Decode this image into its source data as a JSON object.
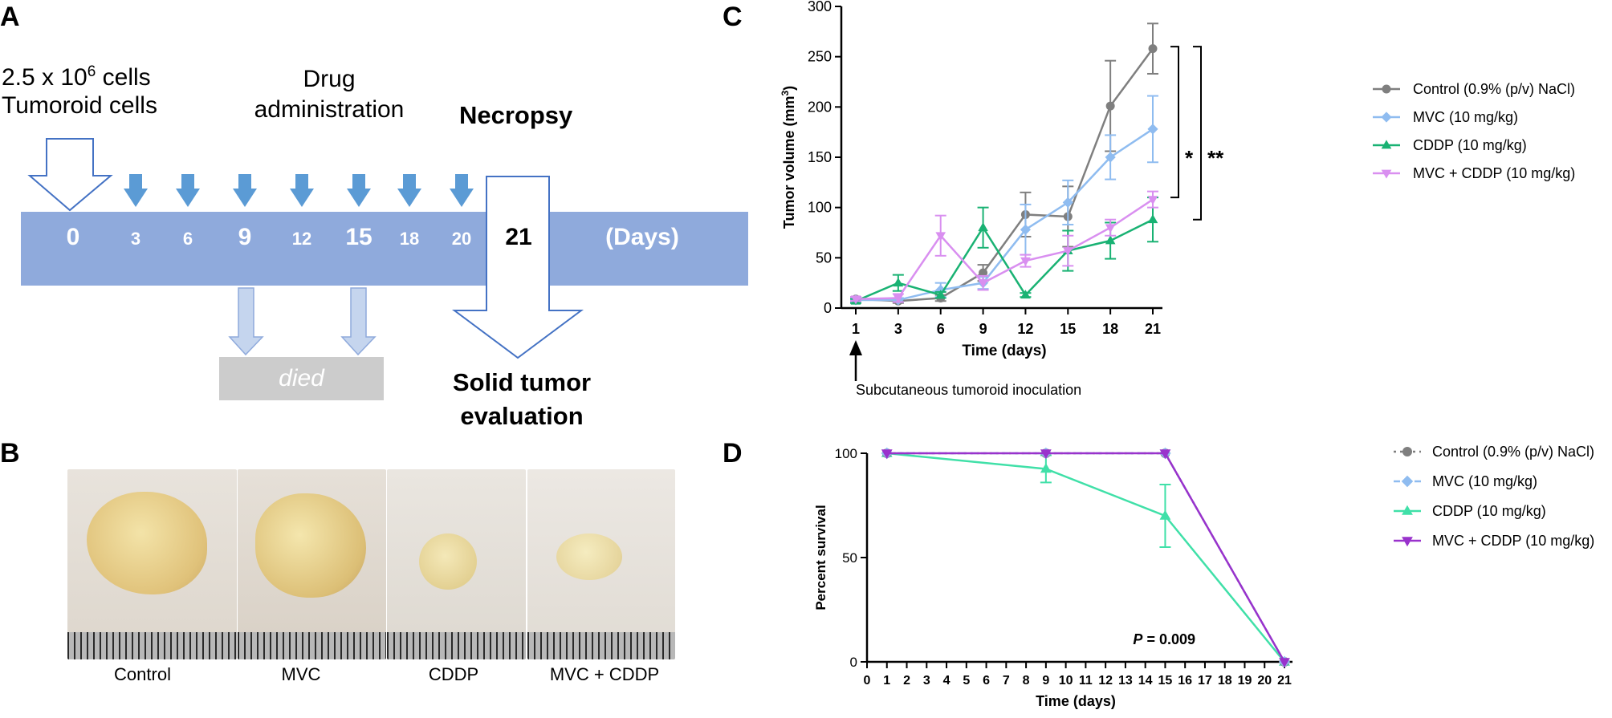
{
  "colors": {
    "timeline": "#8faadc",
    "arrow_blue": "#5b9bd5",
    "arrow_light": "#c5d5ee",
    "died_box": "#cccccc",
    "control": "#7f7f7f",
    "mvc": "#8fbcf0",
    "cddp": "#19b273",
    "mvc_cddp": "#d98ff0",
    "cddp_survival": "#40e0a8",
    "mvc_cddp_survival": "#9932cc"
  },
  "panel_a": {
    "letter": "A",
    "cells_line1_prefix": "2.5 x 10",
    "cells_exp": "6",
    "cells_line1_suffix": " cells",
    "cells_line2": "Tumoroid cells",
    "drug_line1": "Drug",
    "drug_line2": "administration",
    "necropsy": "Necropsy",
    "days_label": "(Days)",
    "day_start": "0",
    "drug_days": [
      "3",
      "6",
      "9",
      "12",
      "15",
      "18",
      "20"
    ],
    "day_end": "21",
    "died": "died",
    "solid_line1": "Solid tumor",
    "solid_line2": "evaluation"
  },
  "panel_b": {
    "letter": "B",
    "photos": [
      {
        "label": "Control",
        "icon": "tumor-photo-control"
      },
      {
        "label": "MVC",
        "icon": "tumor-photo-mvc"
      },
      {
        "label": "CDDP",
        "icon": "tumor-photo-cddp"
      },
      {
        "label": "MVC + CDDP",
        "icon": "tumor-photo-mvc-cddp"
      }
    ]
  },
  "chart_data": [
    {
      "id": "C",
      "type": "line",
      "panel_letter": "C",
      "xlabel": "Time (days)",
      "ylabel_prefix": "Tumor volume (mm",
      "ylabel_exp": "3",
      "ylabel_suffix": ")",
      "ylim": [
        0,
        300
      ],
      "yticks": [
        0,
        50,
        100,
        150,
        200,
        250,
        300
      ],
      "categories": [
        "1",
        "3",
        "6",
        "9",
        "12",
        "15",
        "18",
        "21"
      ],
      "series": [
        {
          "name": "Control (0.9% (p/v) NaCl)",
          "marker": "circle",
          "color": "#7f7f7f",
          "values": [
            9,
            7,
            10,
            35,
            93,
            91,
            201,
            258
          ],
          "errors": [
            2,
            2,
            3,
            8,
            22,
            30,
            45,
            25
          ]
        },
        {
          "name": "MVC (10 mg/kg)",
          "marker": "diamond",
          "color": "#8fbcf0",
          "values": [
            8,
            8,
            18,
            25,
            78,
            105,
            150,
            178
          ],
          "errors": [
            2,
            2,
            7,
            6,
            25,
            22,
            22,
            33
          ]
        },
        {
          "name": "CDDP (10 mg/kg)",
          "marker": "triangle",
          "color": "#19b273",
          "values": [
            7,
            25,
            13,
            80,
            13,
            57,
            67,
            88
          ],
          "errors": [
            2,
            8,
            3,
            20,
            2,
            20,
            18,
            22
          ]
        },
        {
          "name": "MVC + CDDP (10 mg/kg)",
          "marker": "triangle-down",
          "color": "#d98ff0",
          "values": [
            9,
            10,
            72,
            25,
            47,
            57,
            80,
            108
          ],
          "errors": [
            2,
            4,
            20,
            7,
            6,
            15,
            8,
            8
          ]
        }
      ],
      "significance": [
        {
          "label": "*",
          "from": 110,
          "to": 260
        },
        {
          "label": "**",
          "from": 88,
          "to": 260
        }
      ],
      "annotation": "Subcutaneous tumoroid inoculation",
      "annotation_day": "1",
      "legend_position": "right"
    },
    {
      "id": "D",
      "type": "line",
      "panel_letter": "D",
      "xlabel": "Time (days)",
      "ylabel": "Percent survival",
      "ylim": [
        0,
        100
      ],
      "yticks": [
        0,
        50,
        100
      ],
      "xticks": [
        "0",
        "1",
        "2",
        "3",
        "4",
        "5",
        "6",
        "7",
        "8",
        "9",
        "10",
        "11",
        "12",
        "13",
        "14",
        "15",
        "16",
        "17",
        "18",
        "19",
        "20",
        "21"
      ],
      "xlim": [
        0,
        21
      ],
      "series": [
        {
          "name": "Control (0.9% (p/v) NaCl)",
          "marker": "circle",
          "color": "#7f7f7f",
          "dash": "dotted",
          "x": [
            1,
            9,
            15,
            21
          ],
          "values": [
            100,
            100,
            100,
            0
          ],
          "errors": [
            0,
            0,
            0,
            0
          ]
        },
        {
          "name": "MVC (10 mg/kg)",
          "marker": "diamond",
          "color": "#8fbcf0",
          "dash": "dashed",
          "x": [
            1,
            9,
            15,
            21
          ],
          "values": [
            100,
            100,
            100,
            0
          ],
          "errors": [
            0,
            0,
            0,
            0
          ]
        },
        {
          "name": "CDDP (10 mg/kg)",
          "marker": "triangle",
          "color": "#40e0a8",
          "dash": "solid",
          "x": [
            1,
            9,
            15,
            21
          ],
          "values": [
            100,
            92.5,
            70,
            0
          ],
          "errors": [
            0,
            6.5,
            15,
            0
          ]
        },
        {
          "name": "MVC + CDDP (10 mg/kg)",
          "marker": "triangle-down",
          "color": "#9932cc",
          "dash": "solid",
          "x": [
            1,
            9,
            15,
            21
          ],
          "values": [
            100,
            100,
            100,
            0
          ],
          "errors": [
            0,
            0,
            0,
            0
          ]
        }
      ],
      "p_label": "P",
      "p_value": " = 0.009",
      "legend_position": "right"
    }
  ]
}
